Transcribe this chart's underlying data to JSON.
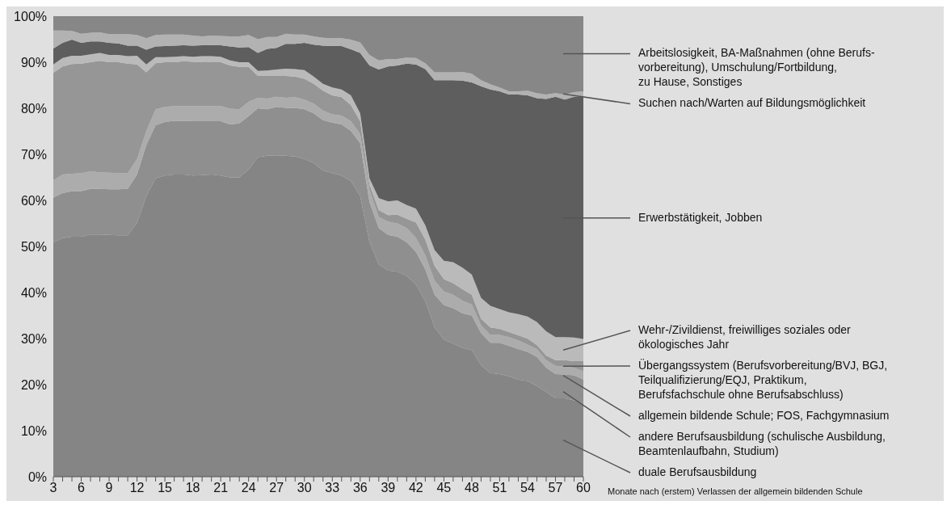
{
  "chart_data": {
    "type": "area",
    "stacked": true,
    "xlabel": "Monate nach (erstem) Verlassen der allgemein bildenden Schule",
    "x": [
      3,
      4,
      5,
      6,
      7,
      8,
      9,
      10,
      11,
      12,
      13,
      14,
      15,
      16,
      17,
      18,
      19,
      20,
      21,
      22,
      23,
      24,
      25,
      26,
      27,
      28,
      29,
      30,
      31,
      32,
      33,
      34,
      35,
      36,
      37,
      38,
      39,
      40,
      41,
      42,
      43,
      44,
      45,
      46,
      47,
      48,
      49,
      50,
      51,
      52,
      53,
      54,
      55,
      56,
      57,
      58,
      59,
      60
    ],
    "xlim": [
      3,
      60
    ],
    "xticks": [
      3,
      {
        "value": 4,
        "label": null
      },
      {
        "value": 5,
        "label": null
      },
      6,
      {
        "value": 7,
        "label": null
      },
      {
        "value": 8,
        "label": null
      },
      9,
      {
        "value": 10,
        "label": null
      },
      {
        "value": 11,
        "label": null
      },
      12,
      {
        "value": 13,
        "label": null
      },
      {
        "value": 14,
        "label": null
      },
      15,
      {
        "value": 16,
        "label": null
      },
      {
        "value": 17,
        "label": null
      },
      18,
      {
        "value": 19,
        "label": null
      },
      {
        "value": 20,
        "label": null
      },
      21,
      {
        "value": 22,
        "label": null
      },
      {
        "value": 23,
        "label": null
      },
      24,
      {
        "value": 25,
        "label": null
      },
      {
        "value": 26,
        "label": null
      },
      27,
      {
        "value": 28,
        "label": null
      },
      {
        "value": 29,
        "label": null
      },
      30,
      {
        "value": 31,
        "label": null
      },
      {
        "value": 32,
        "label": null
      },
      33,
      {
        "value": 34,
        "label": null
      },
      {
        "value": 35,
        "label": null
      },
      36,
      {
        "value": 37,
        "label": null
      },
      {
        "value": 38,
        "label": null
      },
      39,
      {
        "value": 40,
        "label": null
      },
      {
        "value": 41,
        "label": null
      },
      42,
      {
        "value": 43,
        "label": null
      },
      {
        "value": 44,
        "label": null
      },
      45,
      {
        "value": 46,
        "label": null
      },
      {
        "value": 47,
        "label": null
      },
      48,
      {
        "value": 49,
        "label": null
      },
      {
        "value": 50,
        "label": null
      },
      51,
      {
        "value": 52,
        "label": null
      },
      {
        "value": 53,
        "label": null
      },
      54,
      {
        "value": 55,
        "label": null
      },
      {
        "value": 56,
        "label": null
      },
      57,
      {
        "value": 58,
        "label": null
      },
      {
        "value": 59,
        "label": null
      },
      60
    ],
    "ylim": [
      0,
      100
    ],
    "yticks": [
      {
        "value": 0,
        "label": "0%"
      },
      {
        "value": 10,
        "label": "10%"
      },
      {
        "value": 20,
        "label": "20%"
      },
      {
        "value": 30,
        "label": "30%"
      },
      {
        "value": 40,
        "label": "40%"
      },
      {
        "value": 50,
        "label": "50%"
      },
      {
        "value": 60,
        "label": "60%"
      },
      {
        "value": 70,
        "label": "70%"
      },
      {
        "value": 80,
        "label": "80%"
      },
      {
        "value": 90,
        "label": "90%"
      },
      {
        "value": 100,
        "label": "100%"
      }
    ],
    "series": [
      {
        "name": "duale Berufsausbildung",
        "color": "#858585",
        "values": [
          50.9,
          51.8,
          52.1,
          52.1,
          52.6,
          52.6,
          52.5,
          52.4,
          52.4,
          55.1,
          60.9,
          64.8,
          65.4,
          65.6,
          65.6,
          65.4,
          65.5,
          65.6,
          65.4,
          65.0,
          65.0,
          66.7,
          69.4,
          69.7,
          69.8,
          69.7,
          69.5,
          69.0,
          68.1,
          66.5,
          65.9,
          65.4,
          64.2,
          60.9,
          50.9,
          46.1,
          44.8,
          44.5,
          43.6,
          41.7,
          38.1,
          32.4,
          29.8,
          28.9,
          28.0,
          27.5,
          24.2,
          22.5,
          22.3,
          21.8,
          21.1,
          20.8,
          19.7,
          18.4,
          17.0,
          17.0,
          16.6,
          15.9
        ]
      },
      {
        "name": "andere Berufsausbildung (schulische Ausbildung,\nBeamtenlaufbahn, Studium)",
        "color": "#8f8f8f",
        "values": [
          9.7,
          9.8,
          9.9,
          9.9,
          9.9,
          9.9,
          9.9,
          10.0,
          10.1,
          10.5,
          11.1,
          11.5,
          11.6,
          11.7,
          11.7,
          11.8,
          11.7,
          11.6,
          11.8,
          11.5,
          11.7,
          11.6,
          10.6,
          10.1,
          10.5,
          10.4,
          10.6,
          10.8,
          10.8,
          10.9,
          11.0,
          11.1,
          10.9,
          11.5,
          8.7,
          7.9,
          7.7,
          7.6,
          7.3,
          7.1,
          6.9,
          7.1,
          7.5,
          7.7,
          7.5,
          7.5,
          7.0,
          6.6,
          6.8,
          6.6,
          6.6,
          6.3,
          6.3,
          5.3,
          5.3,
          5.2,
          5.4,
          5.2
        ]
      },
      {
        "name": "allgemein bildende Schule; FOS, Fachgymnasium",
        "color": "#acacac",
        "values": [
          3.8,
          4.0,
          3.8,
          3.9,
          3.8,
          3.6,
          3.6,
          3.5,
          3.4,
          3.4,
          3.1,
          3.5,
          3.3,
          3.2,
          3.2,
          3.3,
          3.3,
          3.3,
          3.3,
          3.4,
          3.1,
          3.1,
          2.3,
          2.3,
          2.2,
          2.2,
          2.3,
          2.1,
          2.1,
          2.1,
          1.8,
          1.9,
          2.1,
          2.0,
          2.7,
          2.4,
          2.9,
          2.9,
          3.1,
          3.1,
          3.1,
          3.1,
          2.9,
          2.9,
          2.7,
          2.4,
          1.7,
          1.7,
          1.7,
          1.9,
          1.9,
          1.6,
          1.7,
          1.6,
          1.8,
          1.7,
          1.7,
          1.8
        ]
      },
      {
        "name": "Übergangssystem (Berufsvorbereitung/BVJ, BGJ,\nTeilqualifizierung/EQJ, Praktikum,\nBerufsfachschule ohne Berufsabschluss)",
        "color": "#969696",
        "values": [
          23.3,
          23.5,
          23.8,
          23.8,
          23.7,
          24.2,
          24.0,
          24.1,
          23.8,
          20.5,
          12.7,
          10.0,
          9.7,
          9.5,
          9.7,
          9.6,
          9.5,
          9.5,
          9.5,
          9.4,
          9.2,
          7.6,
          4.7,
          4.9,
          4.5,
          4.7,
          4.5,
          4.5,
          4.3,
          4.3,
          4.1,
          4.0,
          3.5,
          2.8,
          1.1,
          1.5,
          1.4,
          1.9,
          2.0,
          3.3,
          3.4,
          3.2,
          2.7,
          2.5,
          2.5,
          2.1,
          1.4,
          1.6,
          1.3,
          1.1,
          1.1,
          1.3,
          0.9,
          1.0,
          1.2,
          1.4,
          1.4,
          2.2
        ]
      },
      {
        "name": "Wehr-/Zivildienst, freiwilliges soziales oder\nökologisches Jahr",
        "color": "#bababa",
        "values": [
          1.8,
          1.8,
          1.8,
          1.7,
          1.7,
          1.7,
          1.6,
          1.6,
          1.6,
          1.9,
          1.7,
          1.3,
          1.1,
          1.2,
          1.1,
          1.1,
          1.3,
          1.3,
          1.2,
          1.1,
          1.0,
          1.0,
          1.1,
          1.2,
          1.4,
          1.6,
          1.6,
          1.9,
          1.6,
          1.5,
          1.7,
          1.7,
          2.1,
          1.7,
          1.4,
          2.6,
          3.0,
          3.1,
          3.0,
          3.0,
          3.1,
          3.4,
          4.0,
          4.6,
          4.7,
          4.4,
          4.5,
          4.7,
          4.3,
          4.3,
          4.6,
          4.8,
          5.0,
          5.3,
          5.0,
          5.0,
          5.1,
          4.8
        ]
      },
      {
        "name": "Erwerbstätigkeit, Jobben",
        "color": "#5e5e5e",
        "values": [
          3.5,
          3.3,
          3.5,
          2.8,
          2.8,
          2.5,
          2.6,
          2.5,
          2.3,
          2.2,
          3.2,
          2.3,
          2.4,
          2.4,
          2.4,
          2.4,
          2.4,
          2.4,
          2.5,
          3.0,
          3.2,
          3.3,
          3.9,
          4.7,
          4.7,
          5.4,
          5.5,
          5.9,
          6.9,
          8.3,
          9.0,
          9.4,
          10.0,
          13.1,
          24.5,
          27.9,
          29.3,
          29.3,
          30.7,
          31.3,
          33.9,
          36.9,
          39.2,
          39.5,
          40.6,
          41.7,
          46.0,
          47.0,
          47.3,
          47.3,
          47.7,
          48.0,
          48.6,
          50.4,
          52.2,
          51.6,
          52.3,
          52.6
        ]
      },
      {
        "name": "Suchen nach/Warten auf Bildungsmöglichkeit",
        "color": "#b2b2b2",
        "values": [
          3.9,
          2.7,
          1.9,
          2.0,
          1.9,
          2.0,
          1.9,
          2.0,
          2.5,
          2.3,
          2.5,
          2.5,
          2.5,
          2.4,
          2.3,
          2.2,
          1.9,
          2.1,
          2.0,
          2.2,
          2.4,
          2.6,
          3.0,
          2.6,
          2.4,
          2.2,
          2.0,
          1.8,
          1.8,
          1.7,
          1.7,
          1.7,
          2.1,
          2.3,
          2.3,
          2.0,
          1.6,
          1.4,
          1.3,
          1.4,
          1.3,
          1.7,
          1.7,
          1.7,
          1.9,
          1.9,
          1.3,
          1.1,
          0.8,
          0.7,
          0.7,
          1.0,
          1.1,
          1.0,
          0.8,
          1.1,
          1.0,
          1.2
        ]
      },
      {
        "name": "Arbeitslosigkeit, BA-Maßnahmen (ohne Berufs-\nvorbereitung), Umschulung/Fortbildung,\nzu Hause, Sonstiges",
        "color": "#878787",
        "values": [
          3.1,
          3.1,
          3.2,
          3.8,
          3.6,
          3.5,
          3.9,
          3.9,
          3.9,
          4.1,
          4.8,
          4.1,
          4.0,
          4.0,
          4.0,
          4.2,
          4.4,
          4.2,
          4.3,
          4.4,
          4.4,
          4.1,
          5.0,
          4.5,
          4.5,
          3.8,
          4.0,
          4.0,
          4.4,
          4.7,
          4.8,
          4.8,
          5.1,
          5.7,
          8.4,
          9.6,
          9.3,
          9.3,
          9.0,
          9.1,
          10.2,
          12.2,
          12.2,
          12.2,
          12.1,
          12.5,
          13.9,
          14.8,
          15.5,
          16.3,
          16.3,
          16.2,
          16.7,
          17.0,
          16.7,
          17.0,
          16.5,
          16.3
        ]
      }
    ]
  }
}
